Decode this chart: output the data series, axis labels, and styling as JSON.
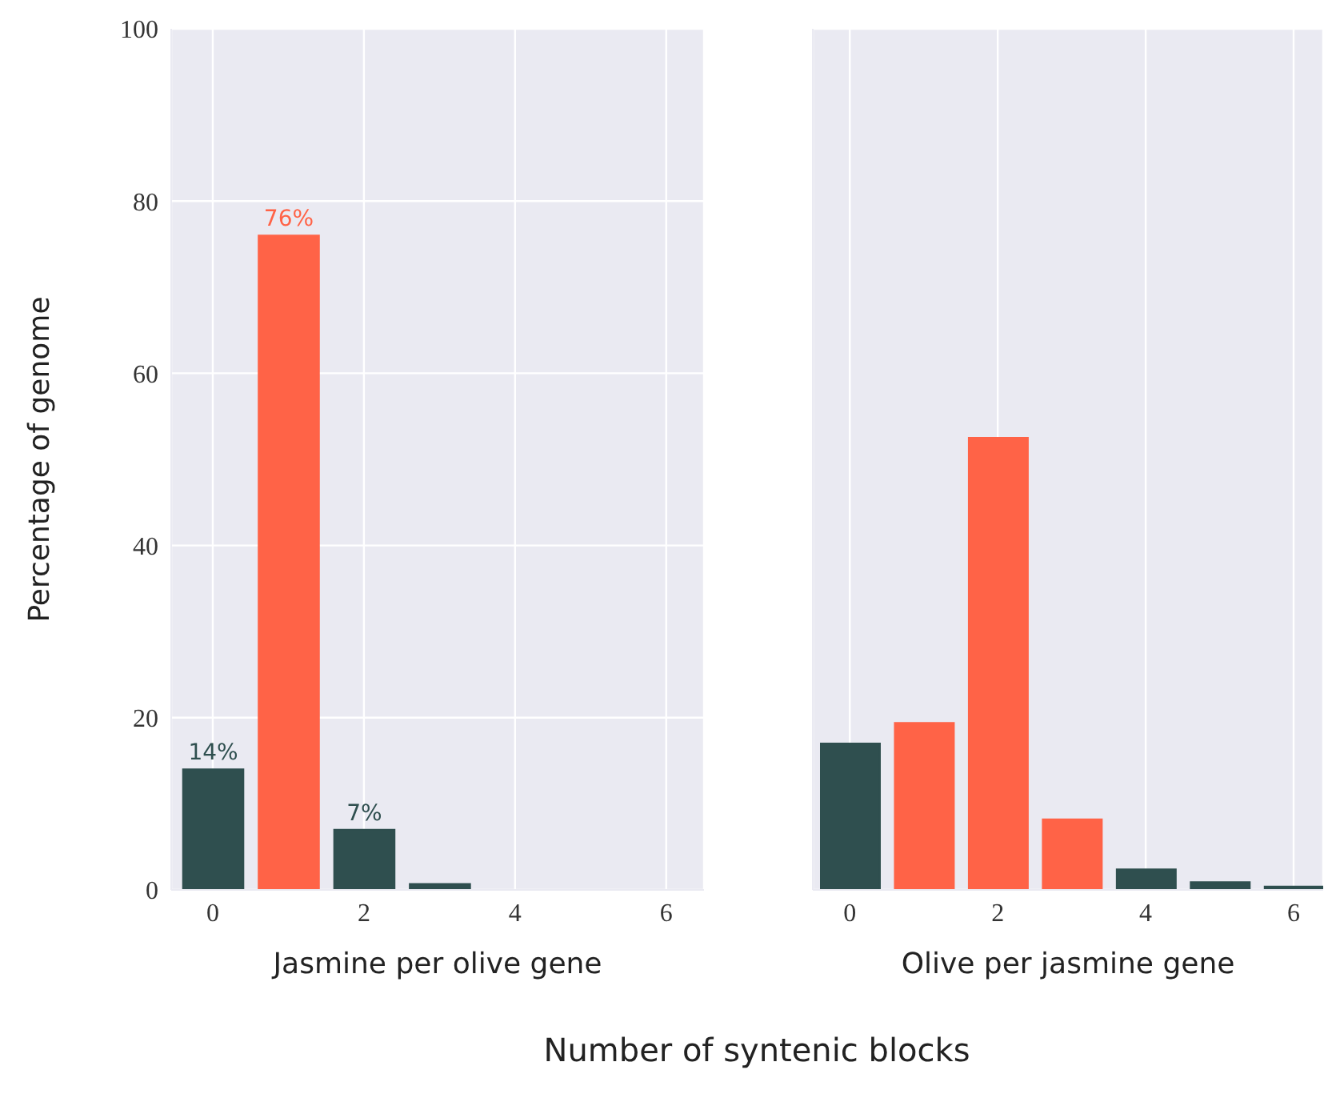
{
  "chart_data": [
    {
      "type": "bar",
      "ylabel": "Percentage of genome",
      "xlabel": "Jasmine per olive gene",
      "annotations": [
        "Number of syntenic blocks"
      ],
      "x": [
        0,
        1,
        2,
        3
      ],
      "values": [
        14,
        76,
        7,
        0.7
      ],
      "colors": [
        "#2f4f4f",
        "#ff6347",
        "#2f4f4f",
        "#2f4f4f"
      ],
      "value_labels": [
        "14%",
        "76%",
        "7%",
        null
      ],
      "xlim": [
        -0.55,
        6.5
      ],
      "xticks": [
        0,
        2,
        4,
        6
      ],
      "ylim": [
        0,
        100
      ],
      "yticks": [
        0,
        20,
        40,
        60,
        80,
        100
      ],
      "grid": true,
      "legend": false
    },
    {
      "type": "bar",
      "xlabel": "Olive per jasmine gene",
      "x": [
        0,
        1,
        2,
        3,
        4,
        5,
        6
      ],
      "values": [
        17.0,
        19.4,
        52.5,
        8.2,
        2.4,
        0.9,
        0.4
      ],
      "colors": [
        "#2f4f4f",
        "#ff6347",
        "#ff6347",
        "#ff6347",
        "#2f4f4f",
        "#2f4f4f",
        "#2f4f4f"
      ],
      "xlim": [
        -0.5,
        6.4
      ],
      "xticks": [
        0,
        2,
        4,
        6
      ],
      "ylim": [
        0,
        100
      ],
      "yticks": [
        0,
        20,
        40,
        60,
        80,
        100
      ],
      "grid": true,
      "legend": false,
      "tick_labels": "x"
    }
  ]
}
